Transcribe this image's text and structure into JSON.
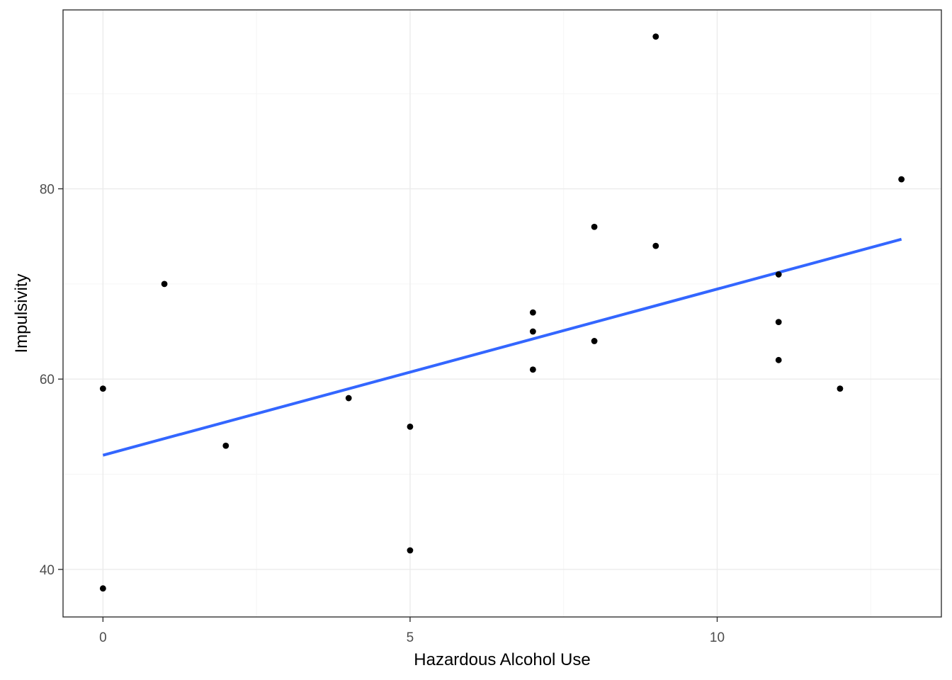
{
  "chart_data": {
    "type": "scatter",
    "title": "",
    "xlabel": "Hazardous Alcohol Use",
    "ylabel": "Impulsivity",
    "xlim": [
      -0.65,
      13.65
    ],
    "ylim": [
      35,
      98.8
    ],
    "x_ticks": [
      0,
      5,
      10
    ],
    "y_ticks": [
      40,
      60,
      80
    ],
    "x_tick_labels": [
      "0",
      "5",
      "10"
    ],
    "y_tick_labels": [
      "40",
      "60",
      "80"
    ],
    "x_minor_grid": [
      2.5,
      7.5,
      12.5
    ],
    "y_minor_grid": [
      50,
      70,
      90
    ],
    "grid": true,
    "legend": "none",
    "points": [
      {
        "x": 0,
        "y": 59
      },
      {
        "x": 0,
        "y": 38
      },
      {
        "x": 1,
        "y": 70
      },
      {
        "x": 2,
        "y": 53
      },
      {
        "x": 4,
        "y": 58
      },
      {
        "x": 5,
        "y": 55
      },
      {
        "x": 5,
        "y": 42
      },
      {
        "x": 7,
        "y": 67
      },
      {
        "x": 7,
        "y": 65
      },
      {
        "x": 7,
        "y": 61
      },
      {
        "x": 8,
        "y": 76
      },
      {
        "x": 8,
        "y": 64
      },
      {
        "x": 9,
        "y": 96
      },
      {
        "x": 9,
        "y": 74
      },
      {
        "x": 11,
        "y": 71
      },
      {
        "x": 11,
        "y": 66
      },
      {
        "x": 11,
        "y": 62
      },
      {
        "x": 12,
        "y": 59
      },
      {
        "x": 13,
        "y": 81
      }
    ],
    "fit_line": {
      "type": "linear",
      "x": [
        0,
        13
      ],
      "y": [
        52.0,
        74.7
      ]
    },
    "colors": {
      "points": "#000000",
      "fit_line": "#3366ff",
      "grid_major": "#ebebeb",
      "grid_minor": "#f5f5f5",
      "panel_border": "#333333",
      "tick": "#333333"
    }
  }
}
